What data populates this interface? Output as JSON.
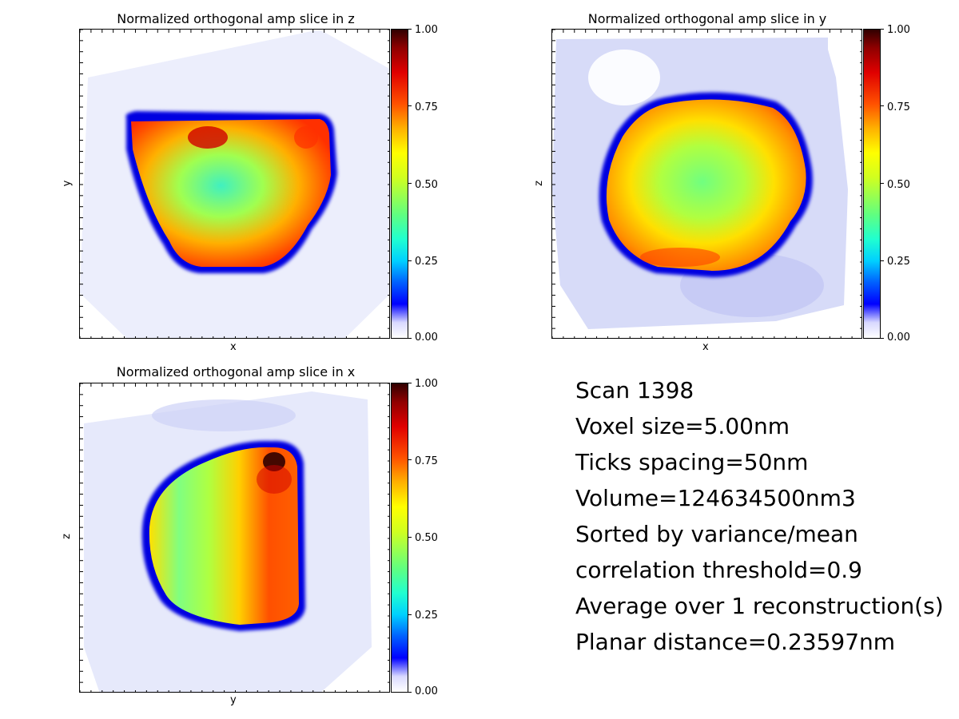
{
  "panels": [
    {
      "id": "z",
      "title": "Normalized orthogonal amp slice in z",
      "xlabel": "x",
      "ylabel": "y"
    },
    {
      "id": "y",
      "title": "Normalized orthogonal amp slice in y",
      "xlabel": "x",
      "ylabel": "z"
    },
    {
      "id": "x",
      "title": "Normalized orthogonal amp slice in x",
      "xlabel": "y",
      "ylabel": "z"
    }
  ],
  "colorbar": {
    "ticks": [
      "0.00",
      "0.25",
      "0.50",
      "0.75",
      "1.00"
    ]
  },
  "info": {
    "scan": "Scan 1398",
    "voxel": "Voxel size=5.00nm",
    "ticks": "Ticks spacing=50nm",
    "volume": "Volume=124634500nm3",
    "sorted": "Sorted by variance/mean",
    "corr": "correlation threshold=0.9",
    "average": "Average over 1 reconstruction(s)",
    "planar": "Planar distance=0.23597nm"
  },
  "chart_data": [
    {
      "type": "heatmap",
      "title": "Normalized orthogonal amp slice in z",
      "xlabel": "x",
      "ylabel": "y",
      "colorbar_range": [
        0,
        1
      ],
      "colormap": "jet-white",
      "colorbar_ticks": [
        0,
        0.25,
        0.5,
        0.75,
        1.0
      ]
    },
    {
      "type": "heatmap",
      "title": "Normalized orthogonal amp slice in y",
      "xlabel": "x",
      "ylabel": "z",
      "colorbar_range": [
        0,
        1
      ],
      "colormap": "jet-white",
      "colorbar_ticks": [
        0,
        0.25,
        0.5,
        0.75,
        1.0
      ]
    },
    {
      "type": "heatmap",
      "title": "Normalized orthogonal amp slice in x",
      "xlabel": "y",
      "ylabel": "z",
      "colorbar_range": [
        0,
        1
      ],
      "colormap": "jet-white",
      "colorbar_ticks": [
        0,
        0.25,
        0.5,
        0.75,
        1.0
      ]
    }
  ]
}
